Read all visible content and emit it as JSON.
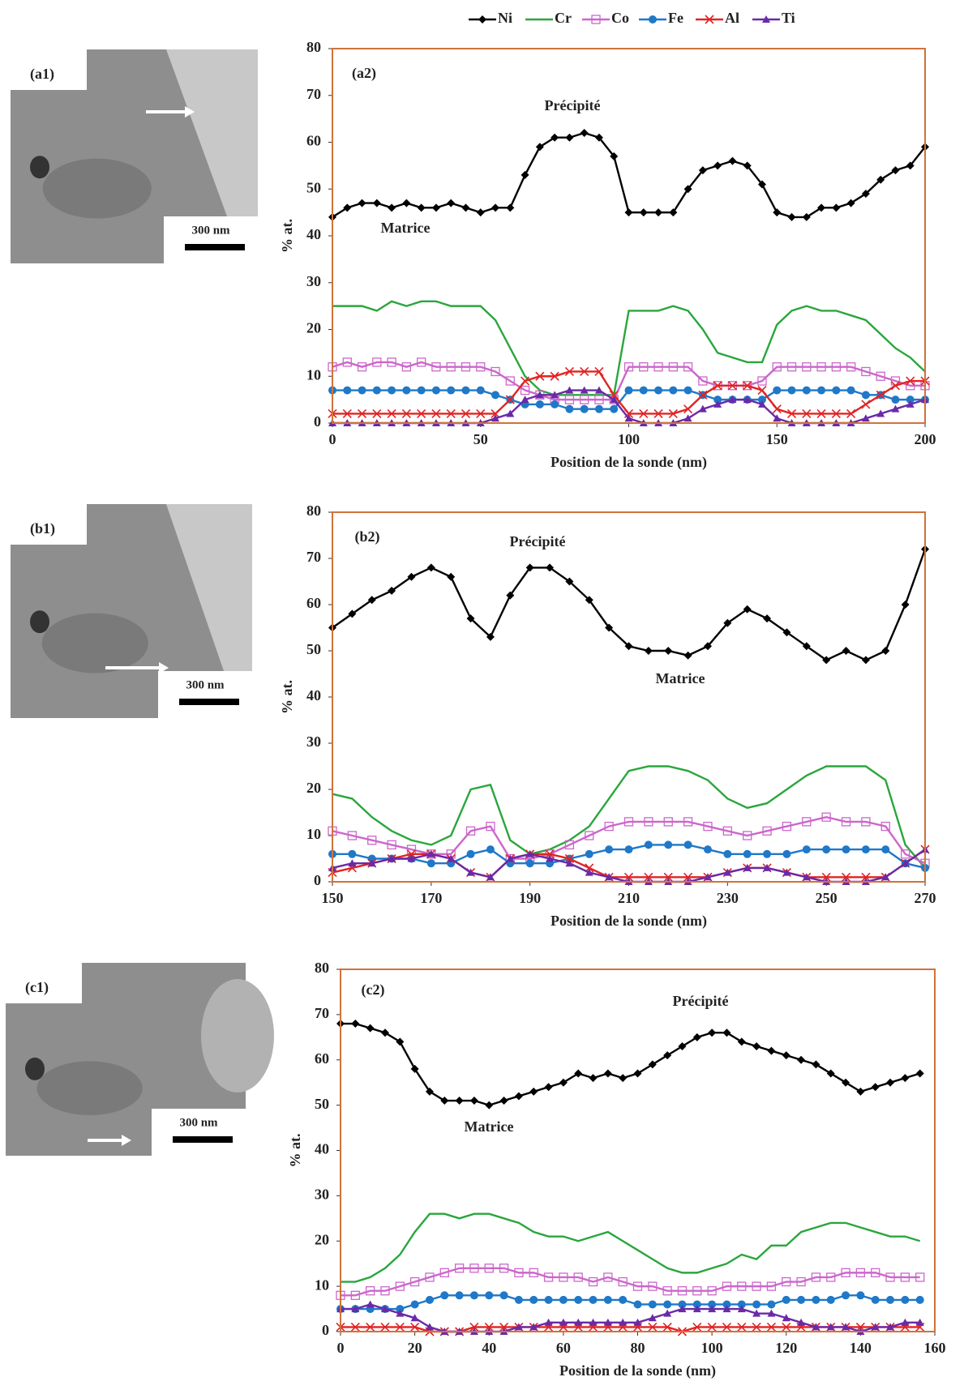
{
  "micrographs": [
    {
      "label": "(a1)",
      "scale_bar": "300 nm"
    },
    {
      "label": "(b1)",
      "scale_bar": "300 nm"
    },
    {
      "label": "(c1)",
      "scale_bar": "300 nm"
    }
  ],
  "chart_data": [
    {
      "type": "line",
      "panel_label": "(a2)",
      "annotations": [
        "Précipité",
        "Matrice"
      ],
      "legend": "top",
      "x_label": "Position de la sonde (nm)",
      "y_label": "% at.",
      "x": [
        0,
        5,
        10,
        15,
        20,
        25,
        30,
        35,
        40,
        45,
        50,
        55,
        60,
        65,
        70,
        75,
        80,
        85,
        90,
        95,
        100,
        105,
        110,
        115,
        120,
        125,
        130,
        135,
        140,
        145,
        150,
        155,
        160,
        165,
        170,
        175,
        180,
        185,
        190,
        195,
        200
      ],
      "xlim": [
        0,
        200
      ],
      "xticks": [
        0,
        50,
        100,
        150,
        200
      ],
      "ylim": [
        0,
        80
      ],
      "yticks": [
        0,
        10,
        20,
        30,
        40,
        50,
        60,
        70,
        80
      ],
      "series": [
        {
          "name": "Ni",
          "color": "#000000",
          "marker": "diamond",
          "values": [
            44,
            46,
            47,
            47,
            46,
            47,
            46,
            46,
            47,
            46,
            45,
            46,
            46,
            53,
            59,
            61,
            61,
            62,
            61,
            57,
            45,
            45,
            45,
            45,
            50,
            54,
            55,
            56,
            55,
            51,
            45,
            44,
            44,
            46,
            46,
            47,
            49,
            52,
            54,
            55,
            59
          ]
        },
        {
          "name": "Cr",
          "color": "#2aa63c",
          "marker": "none",
          "values": [
            25,
            25,
            25,
            24,
            26,
            25,
            26,
            26,
            25,
            25,
            25,
            22,
            16,
            10,
            7,
            6,
            6,
            6,
            6,
            6,
            24,
            24,
            24,
            25,
            24,
            20,
            15,
            14,
            13,
            13,
            21,
            24,
            25,
            24,
            24,
            23,
            22,
            19,
            16,
            14,
            11
          ]
        },
        {
          "name": "Co",
          "color": "#cc66cc",
          "marker": "square",
          "values": [
            12,
            13,
            12,
            13,
            13,
            12,
            13,
            12,
            12,
            12,
            12,
            11,
            9,
            7,
            6,
            5,
            5,
            5,
            5,
            5,
            12,
            12,
            12,
            12,
            12,
            9,
            8,
            8,
            8,
            9,
            12,
            12,
            12,
            12,
            12,
            12,
            11,
            10,
            9,
            8,
            8
          ]
        },
        {
          "name": "Fe",
          "color": "#1f78c8",
          "marker": "circle",
          "values": [
            7,
            7,
            7,
            7,
            7,
            7,
            7,
            7,
            7,
            7,
            7,
            6,
            5,
            4,
            4,
            4,
            3,
            3,
            3,
            3,
            7,
            7,
            7,
            7,
            7,
            6,
            5,
            5,
            5,
            5,
            7,
            7,
            7,
            7,
            7,
            7,
            6,
            6,
            5,
            5,
            5
          ]
        },
        {
          "name": "Al",
          "color": "#e02424",
          "marker": "x",
          "values": [
            2,
            2,
            2,
            2,
            2,
            2,
            2,
            2,
            2,
            2,
            2,
            2,
            5,
            9,
            10,
            10,
            11,
            11,
            11,
            6,
            2,
            2,
            2,
            2,
            3,
            6,
            8,
            8,
            8,
            7,
            3,
            2,
            2,
            2,
            2,
            2,
            4,
            6,
            8,
            9,
            9
          ]
        },
        {
          "name": "Ti",
          "color": "#6a2aa8",
          "marker": "triangle",
          "values": [
            0,
            0,
            0,
            0,
            0,
            0,
            0,
            0,
            0,
            0,
            0,
            1,
            2,
            5,
            6,
            6,
            7,
            7,
            7,
            5,
            1,
            0,
            0,
            0,
            1,
            3,
            4,
            5,
            5,
            4,
            1,
            0,
            0,
            0,
            0,
            0,
            1,
            2,
            3,
            4,
            5
          ]
        }
      ]
    },
    {
      "type": "line",
      "panel_label": "(b2)",
      "annotations": [
        "Précipité",
        "Matrice"
      ],
      "legend": "none",
      "x_label": "Position de la sonde (nm)",
      "y_label": "% at.",
      "x": [
        150,
        154,
        158,
        162,
        166,
        170,
        174,
        178,
        182,
        186,
        190,
        194,
        198,
        202,
        206,
        210,
        214,
        218,
        222,
        226,
        230,
        234,
        238,
        242,
        246,
        250,
        254,
        258,
        262,
        266,
        270
      ],
      "xlim": [
        150,
        270
      ],
      "xticks": [
        150,
        170,
        190,
        210,
        230,
        250,
        270
      ],
      "ylim": [
        0,
        80
      ],
      "yticks": [
        0,
        10,
        20,
        30,
        40,
        50,
        60,
        70,
        80
      ],
      "series": [
        {
          "name": "Ni",
          "color": "#000000",
          "marker": "diamond",
          "values": [
            55,
            58,
            61,
            63,
            66,
            68,
            66,
            57,
            53,
            62,
            68,
            68,
            65,
            61,
            55,
            51,
            50,
            50,
            49,
            51,
            56,
            59,
            57,
            54,
            51,
            48,
            50,
            48,
            50,
            60,
            72
          ]
        },
        {
          "name": "Cr",
          "color": "#2aa63c",
          "marker": "none",
          "values": [
            19,
            18,
            14,
            11,
            9,
            8,
            10,
            20,
            21,
            9,
            6,
            7,
            9,
            12,
            18,
            24,
            25,
            25,
            24,
            22,
            18,
            16,
            17,
            20,
            23,
            25,
            25,
            25,
            22,
            8,
            3
          ]
        },
        {
          "name": "Co",
          "color": "#cc66cc",
          "marker": "square",
          "values": [
            11,
            10,
            9,
            8,
            7,
            6,
            6,
            11,
            12,
            5,
            5,
            6,
            8,
            10,
            12,
            13,
            13,
            13,
            13,
            12,
            11,
            10,
            11,
            12,
            13,
            14,
            13,
            13,
            12,
            6,
            4
          ]
        },
        {
          "name": "Fe",
          "color": "#1f78c8",
          "marker": "circle",
          "values": [
            6,
            6,
            5,
            5,
            5,
            4,
            4,
            6,
            7,
            4,
            4,
            4,
            5,
            6,
            7,
            7,
            8,
            8,
            8,
            7,
            6,
            6,
            6,
            6,
            7,
            7,
            7,
            7,
            7,
            4,
            3
          ]
        },
        {
          "name": "Al",
          "color": "#e02424",
          "marker": "x",
          "values": [
            2,
            3,
            4,
            5,
            6,
            6,
            5,
            2,
            1,
            5,
            6,
            6,
            5,
            3,
            1,
            1,
            1,
            1,
            1,
            1,
            2,
            3,
            3,
            2,
            1,
            1,
            1,
            1,
            1,
            4,
            7
          ]
        },
        {
          "name": "Ti",
          "color": "#6a2aa8",
          "marker": "triangle",
          "values": [
            3,
            4,
            4,
            5,
            5,
            6,
            5,
            2,
            1,
            5,
            6,
            5,
            4,
            2,
            1,
            0,
            0,
            0,
            0,
            1,
            2,
            3,
            3,
            2,
            1,
            0,
            0,
            0,
            1,
            4,
            7
          ]
        }
      ]
    },
    {
      "type": "line",
      "panel_label": "(c2)",
      "annotations": [
        "Précipité",
        "Matrice"
      ],
      "legend": "none",
      "x_label": "Position de la sonde (nm)",
      "y_label": "% at.",
      "x": [
        0,
        4,
        8,
        12,
        16,
        20,
        24,
        28,
        32,
        36,
        40,
        44,
        48,
        52,
        56,
        60,
        64,
        68,
        72,
        76,
        80,
        84,
        88,
        92,
        96,
        100,
        104,
        108,
        112,
        116,
        120,
        124,
        128,
        132,
        136,
        140,
        144,
        148,
        152,
        156
      ],
      "xlim": [
        0,
        160
      ],
      "xticks": [
        0,
        20,
        40,
        60,
        80,
        100,
        120,
        140,
        160
      ],
      "ylim": [
        0,
        80
      ],
      "yticks": [
        0,
        10,
        20,
        30,
        40,
        50,
        60,
        70,
        80
      ],
      "series": [
        {
          "name": "Ni",
          "color": "#000000",
          "marker": "diamond",
          "values": [
            68,
            68,
            67,
            66,
            64,
            58,
            53,
            51,
            51,
            51,
            50,
            51,
            52,
            53,
            54,
            55,
            57,
            56,
            57,
            56,
            57,
            59,
            61,
            63,
            65,
            66,
            66,
            64,
            63,
            62,
            61,
            60,
            59,
            57,
            55,
            53,
            54,
            55,
            56,
            57
          ]
        },
        {
          "name": "Cr",
          "color": "#2aa63c",
          "marker": "none",
          "values": [
            11,
            11,
            12,
            14,
            17,
            22,
            26,
            26,
            25,
            26,
            26,
            25,
            24,
            22,
            21,
            21,
            20,
            21,
            22,
            20,
            18,
            16,
            14,
            13,
            13,
            14,
            15,
            17,
            16,
            19,
            19,
            22,
            23,
            24,
            24,
            23,
            22,
            21,
            21,
            20
          ]
        },
        {
          "name": "Co",
          "color": "#cc66cc",
          "marker": "square",
          "values": [
            8,
            8,
            9,
            9,
            10,
            11,
            12,
            13,
            14,
            14,
            14,
            14,
            13,
            13,
            12,
            12,
            12,
            11,
            12,
            11,
            10,
            10,
            9,
            9,
            9,
            9,
            10,
            10,
            10,
            10,
            11,
            11,
            12,
            12,
            13,
            13,
            13,
            12,
            12,
            12
          ]
        },
        {
          "name": "Fe",
          "color": "#1f78c8",
          "marker": "circle",
          "values": [
            5,
            5,
            5,
            5,
            5,
            6,
            7,
            8,
            8,
            8,
            8,
            8,
            7,
            7,
            7,
            7,
            7,
            7,
            7,
            7,
            6,
            6,
            6,
            6,
            6,
            6,
            6,
            6,
            6,
            6,
            7,
            7,
            7,
            7,
            8,
            8,
            7,
            7,
            7,
            7
          ]
        },
        {
          "name": "Al",
          "color": "#e02424",
          "marker": "x",
          "values": [
            1,
            1,
            1,
            1,
            1,
            1,
            0,
            0,
            0,
            1,
            1,
            1,
            1,
            1,
            1,
            1,
            1,
            1,
            1,
            1,
            1,
            1,
            1,
            0,
            1,
            1,
            1,
            1,
            1,
            1,
            1,
            1,
            1,
            1,
            1,
            1,
            1,
            1,
            1,
            1
          ]
        },
        {
          "name": "Ti",
          "color": "#6a2aa8",
          "marker": "triangle",
          "values": [
            5,
            5,
            6,
            5,
            4,
            3,
            1,
            0,
            0,
            0,
            0,
            0,
            1,
            1,
            2,
            2,
            2,
            2,
            2,
            2,
            2,
            3,
            4,
            5,
            5,
            5,
            5,
            5,
            4,
            4,
            3,
            2,
            1,
            1,
            1,
            0,
            1,
            1,
            2,
            2
          ]
        }
      ]
    }
  ]
}
